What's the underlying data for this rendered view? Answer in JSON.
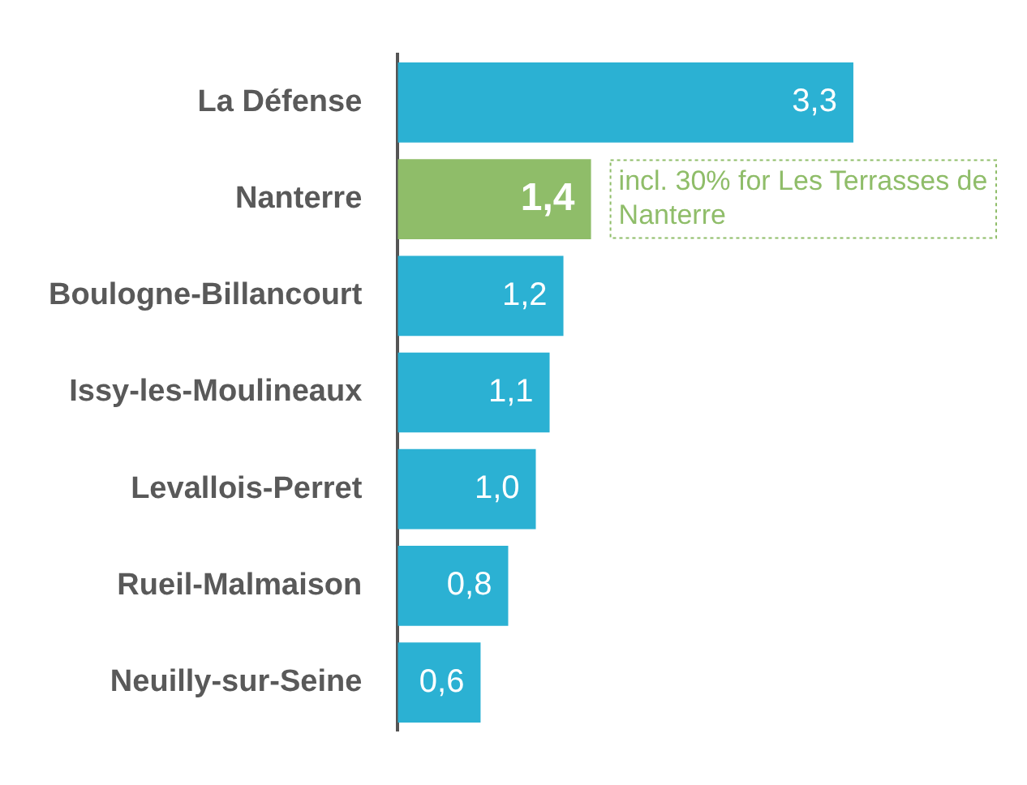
{
  "chart_data": {
    "type": "bar",
    "orientation": "horizontal",
    "categories": [
      "La Défense",
      "Nanterre",
      "Boulogne-Billancourt",
      "Issy-les-Moulineaux",
      "Levallois-Perret",
      "Rueil-Malmaison",
      "Neuilly-sur-Seine"
    ],
    "values": [
      3.3,
      1.4,
      1.2,
      1.1,
      1.0,
      0.8,
      0.6
    ],
    "colors": [
      "#2bb1d3",
      "#8fbd69",
      "#2bb1d3",
      "#2bb1d3",
      "#2bb1d3",
      "#2bb1d3",
      "#2bb1d3"
    ],
    "value_labels": [
      "3,3",
      "1,4",
      "1,2",
      "1,1",
      "1,0",
      "0,8",
      "0,6"
    ],
    "annotations": [
      {
        "text": "incl. 30% for Les Terrasses de Nanterre",
        "x": 1.4,
        "y": "Nanterre"
      }
    ],
    "grid": false,
    "legend": false
  }
}
